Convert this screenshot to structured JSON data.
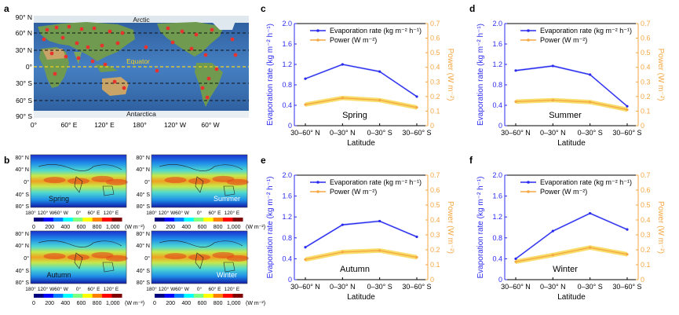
{
  "panel_labels": {
    "a": "a",
    "b": "b",
    "c": "c",
    "d": "d",
    "e": "e",
    "f": "f"
  },
  "map_a": {
    "top_label": "Arctic",
    "equator_label": "Equator",
    "bottom_label": "Antarctica",
    "lat_ticks": [
      "90° N",
      "60° N",
      "30° N",
      "0°",
      "30° S",
      "60° S",
      "90° S"
    ],
    "lon_ticks": [
      "0°",
      "60° E",
      "120° E",
      "180°",
      "120° W",
      "60° W"
    ],
    "colors": {
      "ocean": "#3f74b8",
      "land": "#6f9a4f",
      "desert": "#c9a468",
      "ice": "#e6ecf2",
      "marker": "#e8322d",
      "equator": "#f2d21e",
      "band": "#111111"
    }
  },
  "maps_b": {
    "lat_ticks": [
      "80° N",
      "40° N",
      "0°",
      "40° S",
      "80° S"
    ],
    "lon_ticks": [
      "180°",
      "120° W",
      "60° W",
      "0°",
      "60° E",
      "120° E"
    ],
    "season_labels": [
      "Spring",
      "Summer",
      "Autumn",
      "Winter"
    ],
    "colorbar_ticks": [
      "0",
      "200",
      "400",
      "600",
      "800",
      "1,000"
    ],
    "colorbar_unit": "(W m⁻²)",
    "colormap": [
      "#00007f",
      "#0000ff",
      "#007fff",
      "#00ffff",
      "#7fff7f",
      "#ffff00",
      "#ff7f00",
      "#ff0000",
      "#7f0000"
    ]
  },
  "colors": {
    "evaporation": "#2b2bf0",
    "power": "#f5a742",
    "power_band": "#f6d23a"
  },
  "chart_data": [
    {
      "panel": "c",
      "type": "line",
      "season": "Spring",
      "categories": [
        "30–60° N",
        "0–30° N",
        "0–30° S",
        "30–60° S"
      ],
      "xlabel": "Latitude",
      "ylabel_left": "Evaporation rate (kg m⁻² h⁻¹)",
      "ylabel_right": "Power (W m⁻²)",
      "ylim_left": [
        0,
        2.0
      ],
      "yticks_left": [
        "0",
        "0.4",
        "0.8",
        "1.2",
        "1.6",
        "2.0"
      ],
      "ylim_right": [
        0,
        0.7
      ],
      "yticks_right": [
        "0",
        "0.1",
        "0.2",
        "0.3",
        "0.4",
        "0.5",
        "0.6",
        "0.7"
      ],
      "legend": [
        "Evaporation rate (kg m⁻² h⁻¹)",
        "Power (W m⁻²)"
      ],
      "series": [
        {
          "name": "Evaporation rate",
          "axis": "left",
          "values": [
            0.92,
            1.2,
            1.06,
            0.57
          ]
        },
        {
          "name": "Power",
          "axis": "right",
          "values": [
            0.145,
            0.19,
            0.175,
            0.125
          ],
          "band": 0.015
        }
      ]
    },
    {
      "panel": "d",
      "type": "line",
      "season": "Summer",
      "categories": [
        "30–60° N",
        "0–30° N",
        "0–30° S",
        "30–60° S"
      ],
      "xlabel": "Latitude",
      "ylabel_left": "Evaporation rate (kg m⁻² h⁻¹)",
      "ylabel_right": "Power (W m⁻²)",
      "ylim_left": [
        0,
        2.0
      ],
      "yticks_left": [
        "0",
        "0.4",
        "0.8",
        "1.2",
        "1.6",
        "2.0"
      ],
      "ylim_right": [
        0,
        0.7
      ],
      "yticks_right": [
        "0",
        "0.1",
        "0.2",
        "0.3",
        "0.4",
        "0.5",
        "0.6",
        "0.7"
      ],
      "legend": [
        "Evaporation rate (kg m⁻² h⁻¹)",
        "Power (W m⁻²)"
      ],
      "series": [
        {
          "name": "Evaporation rate",
          "axis": "left",
          "values": [
            1.08,
            1.17,
            1.0,
            0.38
          ]
        },
        {
          "name": "Power",
          "axis": "right",
          "values": [
            0.165,
            0.175,
            0.162,
            0.11
          ],
          "band": 0.015
        }
      ]
    },
    {
      "panel": "e",
      "type": "line",
      "season": "Autumn",
      "categories": [
        "30–60° N",
        "0–30° N",
        "0–30° S",
        "30–60° S"
      ],
      "xlabel": "Latitude",
      "ylabel_left": "Evaporation rate (kg m⁻² h⁻¹)",
      "ylabel_right": "Power (W m⁻²)",
      "ylim_left": [
        0,
        2.0
      ],
      "yticks_left": [
        "0",
        "0.4",
        "0.8",
        "1.2",
        "1.6",
        "2.0"
      ],
      "ylim_right": [
        0,
        0.7
      ],
      "yticks_right": [
        "0",
        "0.1",
        "0.2",
        "0.3",
        "0.4",
        "0.5",
        "0.6",
        "0.7"
      ],
      "legend": [
        "Evaporation rate (kg m⁻² h⁻¹)",
        "Power (W m⁻²)"
      ],
      "series": [
        {
          "name": "Evaporation rate",
          "axis": "left",
          "values": [
            0.62,
            1.05,
            1.12,
            0.82
          ]
        },
        {
          "name": "Power",
          "axis": "right",
          "values": [
            0.135,
            0.185,
            0.195,
            0.15
          ],
          "band": 0.015
        }
      ]
    },
    {
      "panel": "f",
      "type": "line",
      "season": "Winter",
      "categories": [
        "30–60° N",
        "0–30° N",
        "0–30° S",
        "30–60° S"
      ],
      "xlabel": "Latitude",
      "ylabel_left": "Evaporation rate (kg m⁻² h⁻¹)",
      "ylabel_right": "Power (W m⁻²)",
      "ylim_left": [
        0,
        2.0
      ],
      "yticks_left": [
        "0",
        "0.4",
        "0.8",
        "1.2",
        "1.6",
        "2.0"
      ],
      "ylim_right": [
        0,
        0.7
      ],
      "yticks_right": [
        "0",
        "0.1",
        "0.2",
        "0.3",
        "0.4",
        "0.5",
        "0.6",
        "0.7"
      ],
      "legend": [
        "Evaporation rate (kg m⁻² h⁻¹)",
        "Power (W m⁻²)"
      ],
      "series": [
        {
          "name": "Evaporation rate",
          "axis": "left",
          "values": [
            0.4,
            0.93,
            1.27,
            0.96
          ]
        },
        {
          "name": "Power",
          "axis": "right",
          "values": [
            0.12,
            0.165,
            0.215,
            0.17
          ],
          "band": 0.015
        }
      ]
    }
  ]
}
